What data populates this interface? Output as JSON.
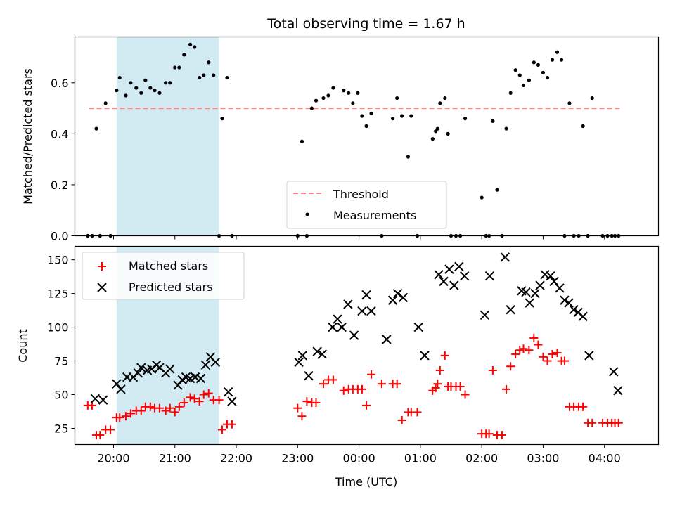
{
  "chart_data": {
    "type": "scatter",
    "title": "Total observing time = 1.67 h",
    "xlabel": "Time (UTC)",
    "x_unit": "hours",
    "x_tick_values": [
      20,
      21,
      22,
      23,
      24,
      25,
      26,
      27,
      28
    ],
    "x_tick_labels": [
      "20:00",
      "21:00",
      "22:00",
      "23:00",
      "00:00",
      "01:00",
      "02:00",
      "03:00",
      "04:00"
    ],
    "xlim": [
      19.37,
      28.88
    ],
    "highlight_band": {
      "x_range": [
        20.05,
        21.72
      ],
      "color": "#add8e6"
    },
    "panels": [
      {
        "ylabel": "Matched/Predicted stars",
        "ylim": [
          0,
          0.78
        ],
        "y_ticks": [
          0.0,
          0.2,
          0.4,
          0.6
        ],
        "y_tick_labels": [
          "0.0",
          "0.2",
          "0.4",
          "0.6"
        ],
        "legend": {
          "position": "lower center",
          "entries": [
            "Threshold",
            "Measurements"
          ]
        },
        "threshold": {
          "name": "Threshold",
          "y": 0.5,
          "x_range": [
            19.6,
            28.25
          ],
          "color": "#ff7f7f",
          "style": "dashed"
        },
        "measurements": {
          "name": "Measurements",
          "color": "#000000",
          "x": [
            19.58,
            19.65,
            19.72,
            19.78,
            19.87,
            19.95,
            20.05,
            20.1,
            20.2,
            20.28,
            20.37,
            20.45,
            20.52,
            20.6,
            20.67,
            20.75,
            20.85,
            20.92,
            21.0,
            21.07,
            21.15,
            21.25,
            21.32,
            21.4,
            21.47,
            21.55,
            21.63,
            21.72,
            21.77,
            21.85,
            21.93,
            23.0,
            23.07,
            23.15,
            23.23,
            23.3,
            23.42,
            23.5,
            23.58,
            23.75,
            23.83,
            23.9,
            23.98,
            24.05,
            24.12,
            24.2,
            24.37,
            24.55,
            24.62,
            24.7,
            24.8,
            24.85,
            24.95,
            25.2,
            25.25,
            25.28,
            25.32,
            25.4,
            25.45,
            25.5,
            25.58,
            25.65,
            25.73,
            26.0,
            26.07,
            26.12,
            26.18,
            26.25,
            26.33,
            26.4,
            26.47,
            26.55,
            26.62,
            26.68,
            26.77,
            26.85,
            26.92,
            27.0,
            27.07,
            27.15,
            27.23,
            27.3,
            27.35,
            27.43,
            27.5,
            27.58,
            27.65,
            27.73,
            27.8,
            27.97,
            28.05,
            28.12,
            28.17,
            28.23
          ],
          "y": [
            0.0,
            0.0,
            0.42,
            0.0,
            0.52,
            0.0,
            0.57,
            0.62,
            0.55,
            0.6,
            0.58,
            0.56,
            0.61,
            0.58,
            0.57,
            0.56,
            0.6,
            0.6,
            0.66,
            0.66,
            0.71,
            0.75,
            0.74,
            0.62,
            0.63,
            0.68,
            0.63,
            0.0,
            0.46,
            0.62,
            0.0,
            0.0,
            0.37,
            0.0,
            0.5,
            0.53,
            0.54,
            0.55,
            0.58,
            0.57,
            0.56,
            0.52,
            0.56,
            0.47,
            0.43,
            0.48,
            0.0,
            0.46,
            0.54,
            0.47,
            0.31,
            0.47,
            0.0,
            0.38,
            0.41,
            0.42,
            0.52,
            0.54,
            0.4,
            0.0,
            0.0,
            0.0,
            0.46,
            0.15,
            0.0,
            0.0,
            0.45,
            0.18,
            0.0,
            0.42,
            0.56,
            0.65,
            0.63,
            0.59,
            0.61,
            0.68,
            0.67,
            0.64,
            0.62,
            0.69,
            0.72,
            0.69,
            0.0,
            0.52,
            0.0,
            0.0,
            0.43,
            0.0,
            0.54,
            0.0,
            0.0,
            0.0,
            0.0,
            0.0
          ]
        }
      },
      {
        "ylabel": "Count",
        "ylim": [
          13,
          160
        ],
        "y_ticks": [
          25,
          50,
          75,
          100,
          125,
          150
        ],
        "y_tick_labels": [
          "25",
          "50",
          "75",
          "100",
          "125",
          "150"
        ],
        "legend": {
          "position": "upper left",
          "entries": [
            "Matched stars",
            "Predicted stars"
          ]
        },
        "series": [
          {
            "name": "Matched stars",
            "marker": "+",
            "color": "#ff0000",
            "x": [
              19.58,
              19.65,
              19.72,
              19.78,
              19.87,
              19.95,
              20.05,
              20.1,
              20.2,
              20.28,
              20.37,
              20.45,
              20.52,
              20.6,
              20.67,
              20.75,
              20.85,
              20.92,
              21.0,
              21.07,
              21.15,
              21.25,
              21.32,
              21.4,
              21.47,
              21.55,
              21.63,
              21.72,
              21.77,
              21.85,
              21.93,
              23.0,
              23.07,
              23.15,
              23.23,
              23.3,
              23.42,
              23.5,
              23.58,
              23.75,
              23.83,
              23.9,
              23.98,
              24.05,
              24.12,
              24.2,
              24.37,
              24.55,
              24.62,
              24.7,
              24.8,
              24.85,
              24.95,
              25.2,
              25.25,
              25.28,
              25.32,
              25.4,
              25.45,
              25.5,
              25.58,
              25.65,
              25.73,
              26.0,
              26.07,
              26.12,
              26.18,
              26.25,
              26.33,
              26.4,
              26.47,
              26.55,
              26.62,
              26.68,
              26.77,
              26.85,
              26.92,
              27.0,
              27.07,
              27.15,
              27.23,
              27.3,
              27.35,
              27.43,
              27.5,
              27.58,
              27.65,
              27.73,
              27.8,
              27.97,
              28.05,
              28.12,
              28.17,
              28.23
            ],
            "y": [
              42,
              42,
              20,
              20,
              24,
              24,
              33,
              33,
              34,
              36,
              38,
              38,
              41,
              41,
              40,
              40,
              38,
              40,
              37,
              41,
              44,
              48,
              47,
              45,
              50,
              51,
              46,
              46,
              24,
              28,
              28,
              40,
              34,
              45,
              44,
              44,
              58,
              61,
              61,
              53,
              54,
              54,
              54,
              54,
              42,
              65,
              58,
              58,
              58,
              31,
              37,
              37,
              37,
              53,
              55,
              58,
              68,
              79,
              56,
              56,
              56,
              56,
              50,
              21,
              21,
              21,
              68,
              20,
              20,
              54,
              71,
              80,
              83,
              84,
              83,
              92,
              87,
              78,
              75,
              80,
              81,
              75,
              75,
              41,
              41,
              41,
              41,
              29,
              29,
              29,
              29,
              29,
              29,
              29
            ]
          },
          {
            "name": "Predicted stars",
            "marker": "x",
            "color": "#000000",
            "x": [
              19.7,
              19.83,
              20.05,
              20.12,
              20.22,
              20.32,
              20.4,
              20.45,
              20.55,
              20.62,
              20.7,
              20.75,
              20.85,
              20.92,
              21.05,
              21.12,
              21.18,
              21.25,
              21.33,
              21.42,
              21.5,
              21.58,
              21.66,
              21.87,
              21.93,
              23.02,
              23.08,
              23.18,
              23.32,
              23.4,
              23.57,
              23.65,
              23.72,
              23.82,
              23.92,
              24.05,
              24.12,
              24.2,
              24.45,
              24.55,
              24.63,
              24.72,
              24.97,
              25.07,
              25.3,
              25.38,
              25.47,
              25.55,
              25.63,
              25.72,
              26.05,
              26.13,
              26.38,
              26.47,
              26.65,
              26.72,
              26.78,
              26.87,
              26.95,
              27.03,
              27.12,
              27.18,
              27.27,
              27.35,
              27.42,
              27.5,
              27.57,
              27.65,
              27.75,
              28.15,
              28.22
            ],
            "y": [
              47,
              46,
              58,
              54,
              63,
              63,
              66,
              70,
              68,
              69,
              72,
              70,
              66,
              69,
              57,
              61,
              63,
              62,
              63,
              62,
              72,
              78,
              74,
              52,
              45,
              74,
              79,
              64,
              82,
              80,
              100,
              106,
              100,
              117,
              94,
              112,
              124,
              112,
              91,
              120,
              125,
              122,
              100,
              79,
              139,
              134,
              143,
              131,
              145,
              138,
              109,
              138,
              152,
              113,
              127,
              126,
              118,
              125,
              131,
              139,
              138,
              134,
              129,
              120,
              118,
              113,
              111,
              108,
              79,
              67,
              53
            ]
          }
        ]
      }
    ]
  }
}
